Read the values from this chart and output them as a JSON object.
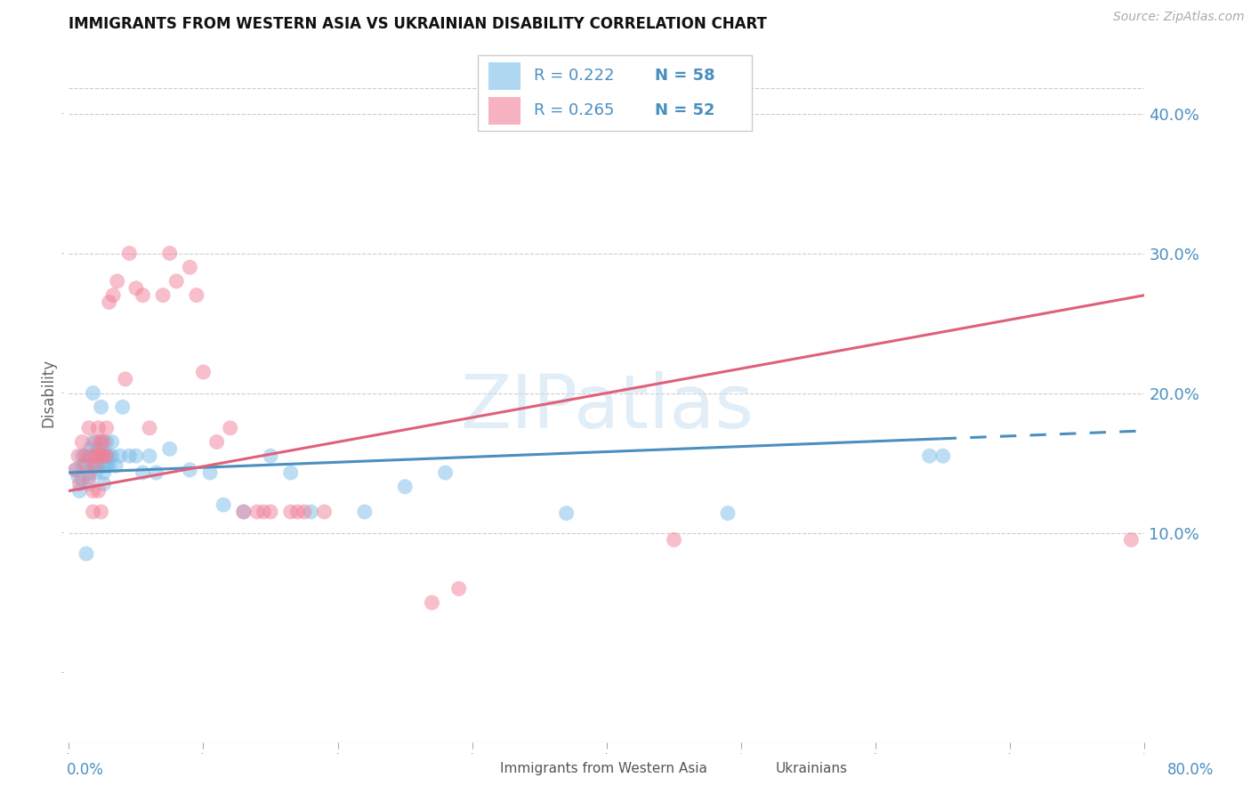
{
  "title": "IMMIGRANTS FROM WESTERN ASIA VS UKRAINIAN DISABILITY CORRELATION CHART",
  "source": "Source: ZipAtlas.com",
  "ylabel": "Disability",
  "ytick_labels": [
    "10.0%",
    "20.0%",
    "30.0%",
    "40.0%"
  ],
  "ytick_values": [
    0.1,
    0.2,
    0.3,
    0.4
  ],
  "xlim": [
    0.0,
    0.8
  ],
  "ylim": [
    -0.05,
    0.45
  ],
  "watermark": "ZIPatlas",
  "legend_blue_R": "R = 0.222",
  "legend_blue_N": "N = 58",
  "legend_pink_R": "R = 0.265",
  "legend_pink_N": "N = 52",
  "blue_color": "#7bbde8",
  "pink_color": "#f08098",
  "blue_line_color": "#4a8fc0",
  "pink_line_color": "#e0607a",
  "blue_scatter": [
    [
      0.005,
      0.145
    ],
    [
      0.007,
      0.14
    ],
    [
      0.008,
      0.13
    ],
    [
      0.01,
      0.155
    ],
    [
      0.01,
      0.148
    ],
    [
      0.01,
      0.138
    ],
    [
      0.012,
      0.15
    ],
    [
      0.013,
      0.085
    ],
    [
      0.015,
      0.155
    ],
    [
      0.015,
      0.143
    ],
    [
      0.015,
      0.135
    ],
    [
      0.016,
      0.16
    ],
    [
      0.018,
      0.165
    ],
    [
      0.018,
      0.148
    ],
    [
      0.018,
      0.2
    ],
    [
      0.02,
      0.155
    ],
    [
      0.02,
      0.148
    ],
    [
      0.02,
      0.143
    ],
    [
      0.022,
      0.16
    ],
    [
      0.022,
      0.155
    ],
    [
      0.022,
      0.148
    ],
    [
      0.024,
      0.19
    ],
    [
      0.024,
      0.165
    ],
    [
      0.024,
      0.155
    ],
    [
      0.026,
      0.155
    ],
    [
      0.026,
      0.148
    ],
    [
      0.026,
      0.143
    ],
    [
      0.026,
      0.135
    ],
    [
      0.028,
      0.165
    ],
    [
      0.028,
      0.155
    ],
    [
      0.028,
      0.148
    ],
    [
      0.03,
      0.155
    ],
    [
      0.03,
      0.148
    ],
    [
      0.032,
      0.165
    ],
    [
      0.032,
      0.155
    ],
    [
      0.035,
      0.148
    ],
    [
      0.038,
      0.155
    ],
    [
      0.04,
      0.19
    ],
    [
      0.045,
      0.155
    ],
    [
      0.05,
      0.155
    ],
    [
      0.055,
      0.143
    ],
    [
      0.06,
      0.155
    ],
    [
      0.065,
      0.143
    ],
    [
      0.075,
      0.16
    ],
    [
      0.09,
      0.145
    ],
    [
      0.105,
      0.143
    ],
    [
      0.115,
      0.12
    ],
    [
      0.13,
      0.115
    ],
    [
      0.15,
      0.155
    ],
    [
      0.165,
      0.143
    ],
    [
      0.18,
      0.115
    ],
    [
      0.22,
      0.115
    ],
    [
      0.25,
      0.133
    ],
    [
      0.28,
      0.143
    ],
    [
      0.37,
      0.114
    ],
    [
      0.49,
      0.114
    ],
    [
      0.64,
      0.155
    ],
    [
      0.65,
      0.155
    ]
  ],
  "pink_scatter": [
    [
      0.005,
      0.145
    ],
    [
      0.007,
      0.155
    ],
    [
      0.008,
      0.135
    ],
    [
      0.01,
      0.165
    ],
    [
      0.012,
      0.155
    ],
    [
      0.013,
      0.148
    ],
    [
      0.015,
      0.175
    ],
    [
      0.015,
      0.14
    ],
    [
      0.017,
      0.155
    ],
    [
      0.018,
      0.13
    ],
    [
      0.018,
      0.115
    ],
    [
      0.02,
      0.165
    ],
    [
      0.02,
      0.155
    ],
    [
      0.02,
      0.148
    ],
    [
      0.022,
      0.175
    ],
    [
      0.022,
      0.155
    ],
    [
      0.022,
      0.13
    ],
    [
      0.024,
      0.165
    ],
    [
      0.024,
      0.155
    ],
    [
      0.024,
      0.115
    ],
    [
      0.026,
      0.165
    ],
    [
      0.026,
      0.155
    ],
    [
      0.028,
      0.175
    ],
    [
      0.028,
      0.155
    ],
    [
      0.03,
      0.265
    ],
    [
      0.033,
      0.27
    ],
    [
      0.036,
      0.28
    ],
    [
      0.042,
      0.21
    ],
    [
      0.045,
      0.3
    ],
    [
      0.05,
      0.275
    ],
    [
      0.055,
      0.27
    ],
    [
      0.06,
      0.175
    ],
    [
      0.07,
      0.27
    ],
    [
      0.075,
      0.3
    ],
    [
      0.08,
      0.28
    ],
    [
      0.09,
      0.29
    ],
    [
      0.095,
      0.27
    ],
    [
      0.1,
      0.215
    ],
    [
      0.11,
      0.165
    ],
    [
      0.12,
      0.175
    ],
    [
      0.13,
      0.115
    ],
    [
      0.14,
      0.115
    ],
    [
      0.145,
      0.115
    ],
    [
      0.15,
      0.115
    ],
    [
      0.165,
      0.115
    ],
    [
      0.17,
      0.115
    ],
    [
      0.175,
      0.115
    ],
    [
      0.19,
      0.115
    ],
    [
      0.27,
      0.05
    ],
    [
      0.29,
      0.06
    ],
    [
      0.45,
      0.095
    ],
    [
      0.79,
      0.095
    ]
  ],
  "blue_trend": {
    "x_start": 0.0,
    "y_start": 0.143,
    "x_end": 0.8,
    "y_end": 0.173
  },
  "blue_trend_solid_end_x": 0.648,
  "pink_trend": {
    "x_start": 0.0,
    "y_start": 0.13,
    "x_end": 0.8,
    "y_end": 0.27
  },
  "grid_color": "#cccccc",
  "bg_color": "#ffffff",
  "axis_label_color": "#4a8fc0",
  "legend_R_color": "#4a8fc0",
  "legend_N_color": "#4a8fc0",
  "legend_text_color": "#333333"
}
